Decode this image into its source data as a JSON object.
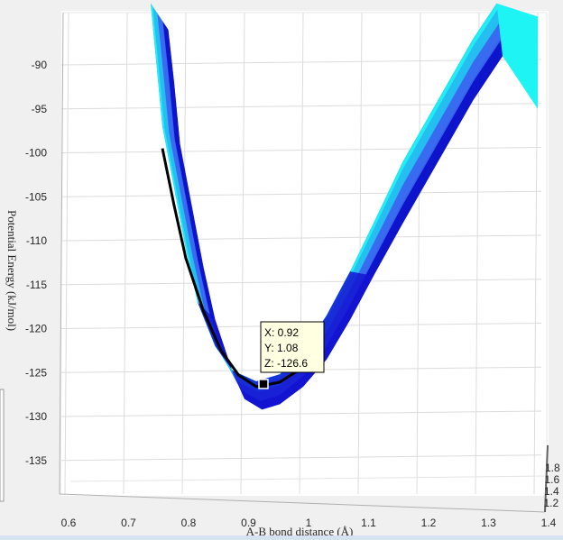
{
  "chart_data": {
    "type": "surface",
    "title": "",
    "xlabel": "A-B bond distance (Å)",
    "ylabel": "Potential Energy (kJ/mol)",
    "x_ticks": [
      "0.6",
      "0.7",
      "0.8",
      "0.9",
      "1",
      "1.1",
      "1.2",
      "1.3",
      "1.4"
    ],
    "y_ticks": [
      "-90",
      "-95",
      "-100",
      "-105",
      "-110",
      "-115",
      "-120",
      "-125",
      "-130",
      "-135"
    ],
    "z_ticks": [
      "1.8",
      "1.6",
      "1.4",
      "1.2"
    ],
    "xlim": [
      0.6,
      1.4
    ],
    "ylim": [
      -139,
      -85
    ],
    "grid": true,
    "colormap": [
      "#0a0ac8",
      "#3a6cf0",
      "#22c8f0",
      "#1ff4f4"
    ],
    "surface_front": [
      {
        "x": 0.77,
        "y": -86
      },
      {
        "x": 0.78,
        "y": -92
      },
      {
        "x": 0.79,
        "y": -99
      },
      {
        "x": 0.81,
        "y": -106
      },
      {
        "x": 0.83,
        "y": -113
      },
      {
        "x": 0.85,
        "y": -119
      },
      {
        "x": 0.88,
        "y": -125
      },
      {
        "x": 0.9,
        "y": -128
      },
      {
        "x": 0.93,
        "y": -129.2
      },
      {
        "x": 0.96,
        "y": -128.6
      },
      {
        "x": 1.0,
        "y": -126.6
      },
      {
        "x": 1.04,
        "y": -123.5
      },
      {
        "x": 1.08,
        "y": -119
      },
      {
        "x": 1.12,
        "y": -114
      },
      {
        "x": 1.17,
        "y": -108
      },
      {
        "x": 1.23,
        "y": -101
      },
      {
        "x": 1.29,
        "y": -94
      },
      {
        "x": 1.34,
        "y": -89
      },
      {
        "x": 1.38,
        "y": -86
      }
    ],
    "surface_back": [
      {
        "x": 0.74,
        "y": -83
      },
      {
        "x": 0.75,
        "y": -90
      },
      {
        "x": 0.76,
        "y": -97
      },
      {
        "x": 0.78,
        "y": -104
      },
      {
        "x": 0.8,
        "y": -111
      },
      {
        "x": 0.82,
        "y": -117
      },
      {
        "x": 0.85,
        "y": -122
      },
      {
        "x": 0.88,
        "y": -124.8
      },
      {
        "x": 0.92,
        "y": -126
      },
      {
        "x": 0.96,
        "y": -125.2
      },
      {
        "x": 1.0,
        "y": -122.6
      },
      {
        "x": 1.04,
        "y": -118.5
      },
      {
        "x": 1.08,
        "y": -113.5
      },
      {
        "x": 1.12,
        "y": -108
      },
      {
        "x": 1.17,
        "y": -101
      },
      {
        "x": 1.23,
        "y": -94
      },
      {
        "x": 1.29,
        "y": -87
      },
      {
        "x": 1.33,
        "y": -83
      }
    ],
    "min_path": [
      {
        "x": 0.76,
        "y": -99.5
      },
      {
        "x": 0.78,
        "y": -106
      },
      {
        "x": 0.8,
        "y": -112
      },
      {
        "x": 0.83,
        "y": -118
      },
      {
        "x": 0.86,
        "y": -122.5
      },
      {
        "x": 0.89,
        "y": -125.3
      },
      {
        "x": 0.92,
        "y": -126.6
      },
      {
        "x": 0.96,
        "y": -126.1
      },
      {
        "x": 1.0,
        "y": -124.4
      },
      {
        "x": 1.03,
        "y": -122.6
      }
    ],
    "datatip": {
      "x": 0.92,
      "y_axis": -126.3,
      "lines": [
        "X: 0.92",
        "Y: 1.08",
        "Z: -126.6"
      ]
    }
  }
}
